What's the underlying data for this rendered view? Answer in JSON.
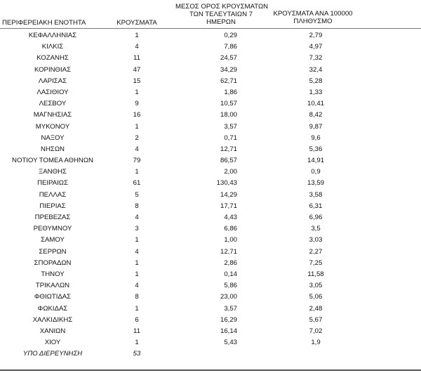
{
  "header": {
    "region": "ΠΕΡΙΦΕΡΕΙΑΚΗ ΕΝΟΤΗΤΑ",
    "cases": "ΚΡΟΥΣΜΑΤΑ",
    "avg_line1": "ΜΕΣΟΣ ΟΡΟΣ ΚΡΟΥΣΜΑΤΩΝ",
    "avg_line2": "ΤΩΝ ΤΕΛΕΥΤΑΙΩΝ 7",
    "avg_line3": "ΗΜΕΡΩΝ",
    "per_line1": "ΚΡΟΥΣΜΑΤΑ ΑΝΑ 100000",
    "per_line2": "ΠΛΗΘΥΣΜΟ"
  },
  "rows": [
    {
      "region": "ΚΕΦΑΛΛΗΝΙΑΣ",
      "cases": "1",
      "avg": "0,29",
      "per": "2,79"
    },
    {
      "region": "ΚΙΛΚΙΣ",
      "cases": "4",
      "avg": "7,86",
      "per": "4,97"
    },
    {
      "region": "ΚΟΖΑΝΗΣ",
      "cases": "11",
      "avg": "24,57",
      "per": "7,32"
    },
    {
      "region": "ΚΟΡΙΝΘΙΑΣ",
      "cases": "47",
      "avg": "34,29",
      "per": "32,4"
    },
    {
      "region": "ΛΑΡΙΣΑΣ",
      "cases": "15",
      "avg": "62,71",
      "per": "5,28"
    },
    {
      "region": "ΛΑΣΙΘΙΟΥ",
      "cases": "1",
      "avg": "1,86",
      "per": "1,33"
    },
    {
      "region": "ΛΕΣΒΟΥ",
      "cases": "9",
      "avg": "10,57",
      "per": "10,41"
    },
    {
      "region": "ΜΑΓΝΗΣΙΑΣ",
      "cases": "16",
      "avg": "18,00",
      "per": "8,42"
    },
    {
      "region": "ΜΥΚΟΝΟΥ",
      "cases": "1",
      "avg": "3,57",
      "per": "9,87"
    },
    {
      "region": "ΝΑΞΟΥ",
      "cases": "2",
      "avg": "0,71",
      "per": "9,6"
    },
    {
      "region": "ΝΗΣΩΝ",
      "cases": "4",
      "avg": "12,71",
      "per": "5,36"
    },
    {
      "region": "ΝΟΤΙΟΥ ΤΟΜΕΑ ΑΘΗΝΩΝ",
      "cases": "79",
      "avg": "86,57",
      "per": "14,91"
    },
    {
      "region": "ΞΑΝΘΗΣ",
      "cases": "1",
      "avg": "2,00",
      "per": "0,9"
    },
    {
      "region": "ΠΕΙΡΑΙΩΣ",
      "cases": "61",
      "avg": "130,43",
      "per": "13,59"
    },
    {
      "region": "ΠΕΛΛΑΣ",
      "cases": "5",
      "avg": "14,29",
      "per": "3,58"
    },
    {
      "region": "ΠΙΕΡΙΑΣ",
      "cases": "8",
      "avg": "17,71",
      "per": "6,31"
    },
    {
      "region": "ΠΡΕΒΕΖΑΣ",
      "cases": "4",
      "avg": "4,43",
      "per": "6,96"
    },
    {
      "region": "ΡΕΘΥΜΝΟΥ",
      "cases": "3",
      "avg": "6,86",
      "per": "3,5"
    },
    {
      "region": "ΣΑΜΟΥ",
      "cases": "1",
      "avg": "1,00",
      "per": "3,03"
    },
    {
      "region": "ΣΕΡΡΩΝ",
      "cases": "4",
      "avg": "12,71",
      "per": "2,27"
    },
    {
      "region": "ΣΠΟΡΑΔΩΝ",
      "cases": "1",
      "avg": "2,86",
      "per": "7,25"
    },
    {
      "region": "ΤΗΝΟΥ",
      "cases": "1",
      "avg": "0,14",
      "per": "11,58"
    },
    {
      "region": "ΤΡΙΚΑΛΩΝ",
      "cases": "4",
      "avg": "5,86",
      "per": "3,05"
    },
    {
      "region": "ΦΘΙΩΤΙΔΑΣ",
      "cases": "8",
      "avg": "23,00",
      "per": "5,06"
    },
    {
      "region": "ΦΩΚΙΔΑΣ",
      "cases": "1",
      "avg": "3,57",
      "per": "2,48"
    },
    {
      "region": "ΧΑΛΚΙΔΙΚΗΣ",
      "cases": "6",
      "avg": "16,29",
      "per": "5,67"
    },
    {
      "region": "ΧΑΝΙΩΝ",
      "cases": "11",
      "avg": "16,14",
      "per": "7,02"
    },
    {
      "region": "ΧΙΟΥ",
      "cases": "1",
      "avg": "5,43",
      "per": "1,9"
    }
  ],
  "pending": {
    "label": "ΥΠΟ ΔΙΕΡΕΥΝΗΣΗ",
    "cases": "53"
  }
}
